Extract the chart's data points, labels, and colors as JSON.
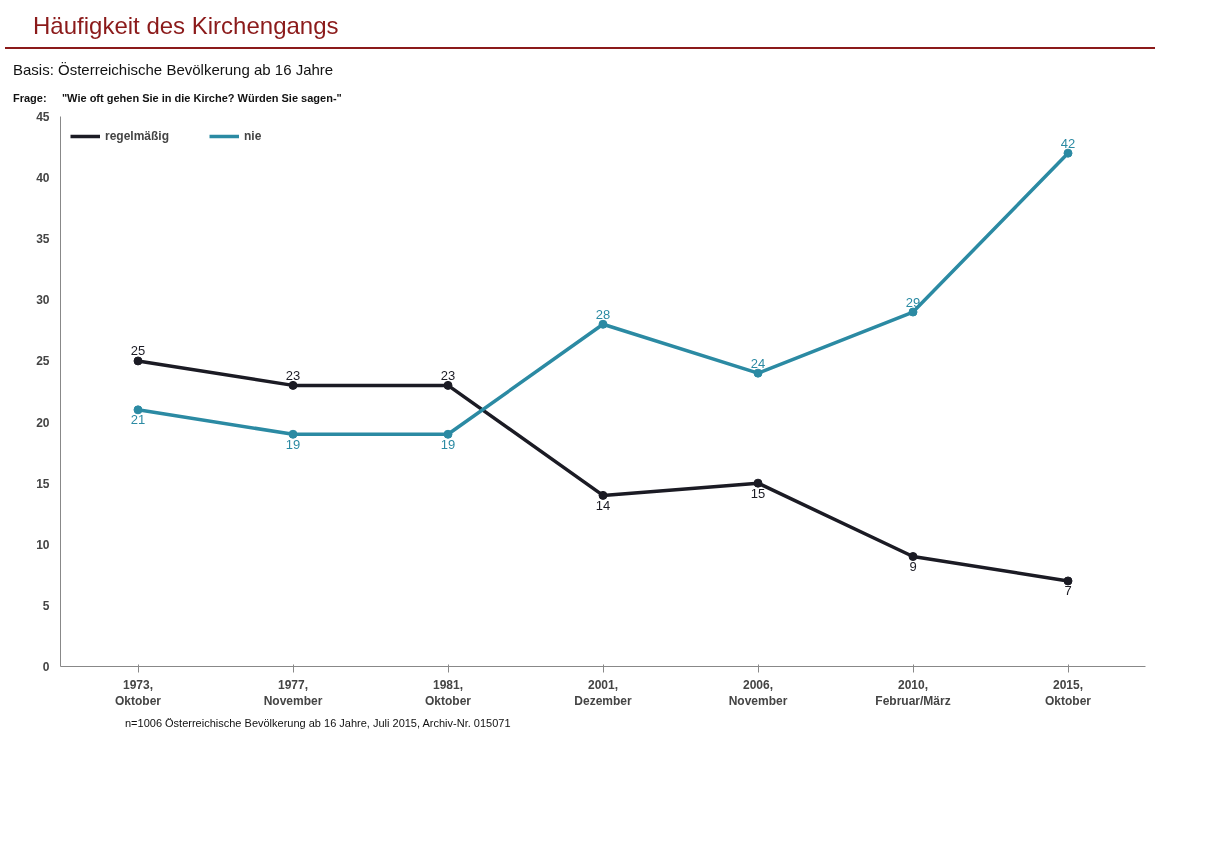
{
  "chart_data": {
    "type": "line",
    "title": "Häufigkeit des Kirchengangs",
    "subtitle": "Basis: Österreichische Bevölkerung ab 16 Jahre",
    "annotations": [
      "Frage:     \"Wie oft gehen Sie in die Kirche? Würden Sie sagen-\"",
      "n=1006 Österreichische Bevölkerung ab 16 Jahre, Juli 2015, Archiv-Nr. 015071"
    ],
    "categories": [
      "1973,\nOktober",
      "1977,\nNovember",
      "1981,\nOktober",
      "2001,\nDezember",
      "2006,\nNovember",
      "2010,\nFebruar/März",
      "2015,\nOktober"
    ],
    "series": [
      {
        "name": "regelmäßig",
        "color": "#1b1b24",
        "values": [
          25,
          23,
          23,
          14,
          15,
          9,
          7
        ]
      },
      {
        "name": "nie",
        "color": "#2b8aa3",
        "values": [
          21,
          19,
          19,
          28,
          24,
          29,
          42
        ]
      }
    ],
    "ylim": [
      0,
      45
    ],
    "yticks": [
      0,
      5,
      10,
      15,
      20,
      25,
      30,
      35,
      40,
      45
    ],
    "grid": false,
    "legend": "top left",
    "marker": "circle",
    "line_style": "solid",
    "data_labels": true
  }
}
